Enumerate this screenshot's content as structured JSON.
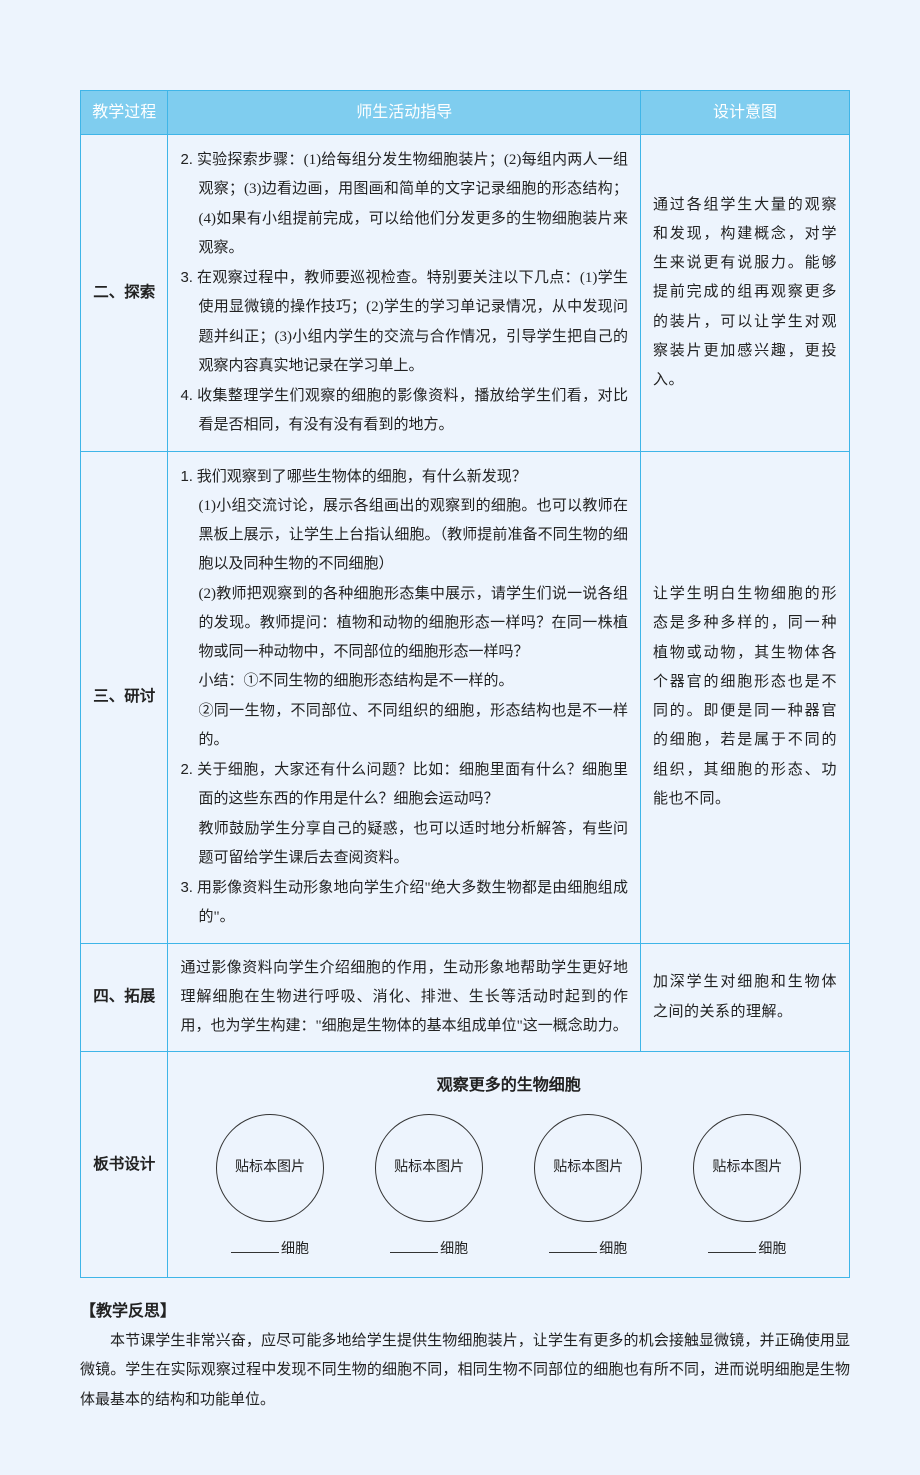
{
  "colors": {
    "page_bg": "#edf4fd",
    "header_bg": "#7fcdef",
    "header_text": "#ffffff",
    "border": "#3fb5e8",
    "text": "#222222"
  },
  "table": {
    "headers": {
      "c1": "教学过程",
      "c2": "师生活动指导",
      "c3": "设计意图"
    },
    "rows": [
      {
        "label": "二、探索",
        "activity": {
          "p1_lead": "2.",
          "p1": "实验探索步骤：(1)给每组分发生物细胞装片；(2)每组内两人一组观察；(3)边看边画，用图画和简单的文字记录细胞的形态结构；(4)如果有小组提前完成，可以给他们分发更多的生物细胞装片来观察。",
          "p2_lead": "3.",
          "p2": "在观察过程中，教师要巡视检查。特别要关注以下几点：(1)学生使用显微镜的操作技巧；(2)学生的学习单记录情况，从中发现问题并纠正；(3)小组内学生的交流与合作情况，引导学生把自己的观察内容真实地记录在学习单上。",
          "p3_lead": "4.",
          "p3": "收集整理学生们观察的细胞的影像资料，播放给学生们看，对比看是否相同，有没有没有看到的地方。"
        },
        "intent": "通过各组学生大量的观察和发现，构建概念，对学生来说更有说服力。能够提前完成的组再观察更多的装片，可以让学生对观察装片更加感兴趣，更投入。"
      },
      {
        "label": "三、研讨",
        "activity": {
          "p1_lead": "1.",
          "p1": "我们观察到了哪些生物体的细胞，有什么新发现？",
          "p1a": "(1)小组交流讨论，展示各组画出的观察到的细胞。也可以教师在黑板上展示，让学生上台指认细胞。（教师提前准备不同生物的细胞以及同种生物的不同细胞）",
          "p1b": "(2)教师把观察到的各种细胞形态集中展示，请学生们说一说各组的发现。教师提问：植物和动物的细胞形态一样吗？在同一株植物或同一种动物中，不同部位的细胞形态一样吗？",
          "p1c": "小结：①不同生物的细胞形态结构是不一样的。",
          "p1d": "②同一生物，不同部位、不同组织的细胞，形态结构也是不一样的。",
          "p2_lead": "2.",
          "p2": "关于细胞，大家还有什么问题？比如：细胞里面有什么？细胞里面的这些东西的作用是什么？细胞会运动吗？",
          "p2a": "教师鼓励学生分享自己的疑惑，也可以适时地分析解答，有些问题可留给学生课后去查阅资料。",
          "p3_lead": "3.",
          "p3": "用影像资料生动形象地向学生介绍\"绝大多数生物都是由细胞组成的\"。"
        },
        "intent": "让学生明白生物细胞的形态是多种多样的，同一种植物或动物，其生物体各个器官的细胞形态也是不同的。即便是同一种器官的细胞，若是属于不同的组织，其细胞的形态、功能也不同。"
      },
      {
        "label": "四、拓展",
        "activity": {
          "p1": "通过影像资料向学生介绍细胞的作用，生动形象地帮助学生更好地理解细胞在生物进行呼吸、消化、排泄、生长等活动时起到的作用，也为学生构建：\"细胞是生物体的基本组成单位\"这一概念助力。"
        },
        "intent": "加深学生对细胞和生物体之间的关系的理解。"
      }
    ],
    "board": {
      "label": "板书设计",
      "title": "观察更多的生物细胞",
      "circle_text": "贴标本图片",
      "cell_label_suffix": "细胞",
      "count": 4
    }
  },
  "reflection": {
    "heading": "【教学反思】",
    "body": "本节课学生非常兴奋，应尽可能多地给学生提供生物细胞装片，让学生有更多的机会接触显微镜，并正确使用显微镜。学生在实际观察过程中发现不同生物的细胞不同，相同生物不同部位的细胞也有所不同，进而说明细胞是生物体最基本的结构和功能单位。"
  }
}
